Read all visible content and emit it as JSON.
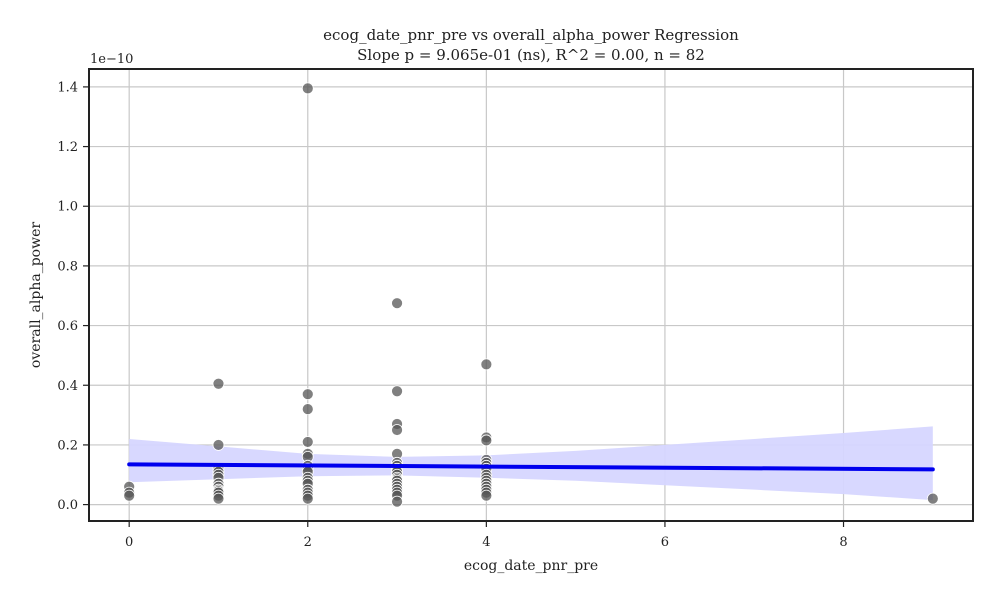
{
  "chart_data": {
    "type": "scatter",
    "title": "ecog_date_pnr_pre vs overall_alpha_power Regression",
    "subtitle": "Slope p = 9.065e-01 (ns), R^2 = 0.00, n = 82",
    "xlabel": "ecog_date_pnr_pre",
    "ylabel": "overall_alpha_power",
    "y_offset_label": "1e−10",
    "xlim": [
      -0.45,
      9.45
    ],
    "ylim": [
      -0.055,
      1.46
    ],
    "x_ticks": [
      0,
      2,
      4,
      6,
      8
    ],
    "x_tick_labels": [
      "0",
      "2",
      "4",
      "6",
      "8"
    ],
    "y_ticks": [
      0.0,
      0.2,
      0.4,
      0.6,
      0.8,
      1.0,
      1.2,
      1.4
    ],
    "y_tick_labels": [
      "0.0",
      "0.2",
      "0.4",
      "0.6",
      "0.8",
      "1.0",
      "1.2",
      "1.4"
    ],
    "grid": true,
    "points": [
      {
        "x": 0,
        "y": 0.06
      },
      {
        "x": 0,
        "y": 0.04
      },
      {
        "x": 0,
        "y": 0.03
      },
      {
        "x": 1,
        "y": 0.405
      },
      {
        "x": 1,
        "y": 0.2
      },
      {
        "x": 1,
        "y": 0.12
      },
      {
        "x": 1,
        "y": 0.11
      },
      {
        "x": 1,
        "y": 0.1
      },
      {
        "x": 1,
        "y": 0.09
      },
      {
        "x": 1,
        "y": 0.07
      },
      {
        "x": 1,
        "y": 0.06
      },
      {
        "x": 1,
        "y": 0.05
      },
      {
        "x": 1,
        "y": 0.045
      },
      {
        "x": 1,
        "y": 0.04
      },
      {
        "x": 1,
        "y": 0.03
      },
      {
        "x": 1,
        "y": 0.02
      },
      {
        "x": 2,
        "y": 1.395
      },
      {
        "x": 2,
        "y": 0.37
      },
      {
        "x": 2,
        "y": 0.32
      },
      {
        "x": 2,
        "y": 0.21
      },
      {
        "x": 2,
        "y": 0.17
      },
      {
        "x": 2,
        "y": 0.16
      },
      {
        "x": 2,
        "y": 0.13
      },
      {
        "x": 2,
        "y": 0.12
      },
      {
        "x": 2,
        "y": 0.11
      },
      {
        "x": 2,
        "y": 0.09
      },
      {
        "x": 2,
        "y": 0.08
      },
      {
        "x": 2,
        "y": 0.07
      },
      {
        "x": 2,
        "y": 0.05
      },
      {
        "x": 2,
        "y": 0.04
      },
      {
        "x": 2,
        "y": 0.03
      },
      {
        "x": 2,
        "y": 0.02
      },
      {
        "x": 3,
        "y": 0.675
      },
      {
        "x": 3,
        "y": 0.38
      },
      {
        "x": 3,
        "y": 0.27
      },
      {
        "x": 3,
        "y": 0.25
      },
      {
        "x": 3,
        "y": 0.17
      },
      {
        "x": 3,
        "y": 0.14
      },
      {
        "x": 3,
        "y": 0.13
      },
      {
        "x": 3,
        "y": 0.12
      },
      {
        "x": 3,
        "y": 0.11
      },
      {
        "x": 3,
        "y": 0.1
      },
      {
        "x": 3,
        "y": 0.09
      },
      {
        "x": 3,
        "y": 0.085
      },
      {
        "x": 3,
        "y": 0.08
      },
      {
        "x": 3,
        "y": 0.07
      },
      {
        "x": 3,
        "y": 0.06
      },
      {
        "x": 3,
        "y": 0.05
      },
      {
        "x": 3,
        "y": 0.04
      },
      {
        "x": 3,
        "y": 0.03
      },
      {
        "x": 3,
        "y": 0.01
      },
      {
        "x": 4,
        "y": 0.47
      },
      {
        "x": 4,
        "y": 0.225
      },
      {
        "x": 4,
        "y": 0.215
      },
      {
        "x": 4,
        "y": 0.15
      },
      {
        "x": 4,
        "y": 0.14
      },
      {
        "x": 4,
        "y": 0.13
      },
      {
        "x": 4,
        "y": 0.12
      },
      {
        "x": 4,
        "y": 0.1
      },
      {
        "x": 4,
        "y": 0.09
      },
      {
        "x": 4,
        "y": 0.08
      },
      {
        "x": 4,
        "y": 0.07
      },
      {
        "x": 4,
        "y": 0.06
      },
      {
        "x": 4,
        "y": 0.05
      },
      {
        "x": 4,
        "y": 0.04
      },
      {
        "x": 4,
        "y": 0.03
      },
      {
        "x": 9,
        "y": 0.02
      }
    ],
    "regression": {
      "x": [
        0,
        9
      ],
      "y": [
        0.135,
        0.118
      ]
    },
    "confidence_band": {
      "x": [
        0,
        1,
        2,
        3,
        4,
        5,
        6,
        7,
        8,
        9
      ],
      "lower": [
        0.075,
        0.085,
        0.095,
        0.098,
        0.09,
        0.08,
        0.065,
        0.05,
        0.035,
        0.015
      ],
      "upper": [
        0.22,
        0.195,
        0.17,
        0.16,
        0.165,
        0.18,
        0.2,
        0.22,
        0.24,
        0.262
      ]
    },
    "colors": {
      "points": "#555555",
      "point_edge": "#ffffff",
      "regression_line": "#0000ee",
      "confidence_band": "#d6d6ff",
      "grid": "#c8c8c8",
      "axes": "#222222"
    }
  }
}
